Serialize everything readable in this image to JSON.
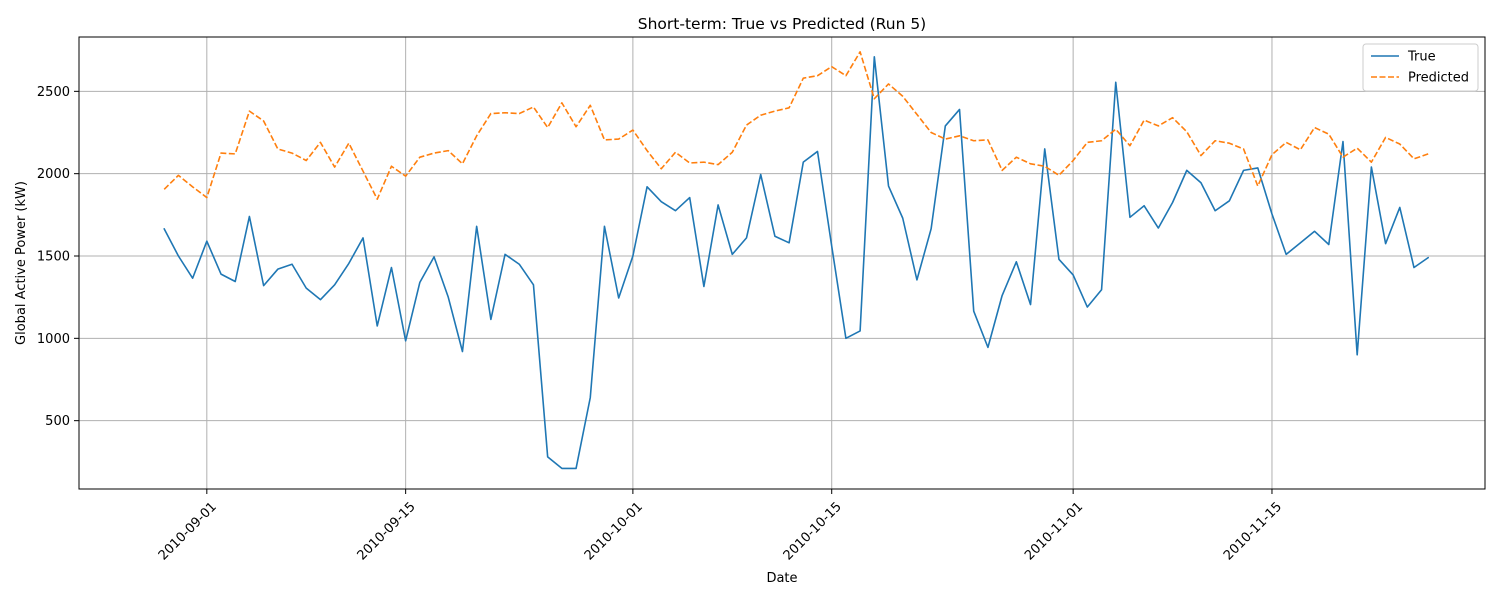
{
  "chart_data": {
    "type": "line",
    "title": "Short-term: True vs Predicted (Run 5)",
    "xlabel": "Date",
    "ylabel": "Global Active Power (kW)",
    "xlim": [
      "2010-08-23",
      "2010-11-30"
    ],
    "ylim": [
      85,
      2830
    ],
    "x_ticks": [
      "2010-09-01",
      "2010-09-15",
      "2010-10-01",
      "2010-10-15",
      "2010-11-01",
      "2010-11-15"
    ],
    "y_ticks": [
      500,
      1000,
      1500,
      2000,
      2500
    ],
    "grid": true,
    "legend_position": "top-right",
    "x_start": "2010-08-29",
    "series": [
      {
        "name": "True",
        "color": "#1f77b4",
        "style": "solid",
        "values": [
          1665,
          1500,
          1365,
          1590,
          1390,
          1345,
          1740,
          1320,
          1420,
          1450,
          1305,
          1235,
          1325,
          1455,
          1610,
          1075,
          1430,
          985,
          1340,
          1495,
          1250,
          920,
          1680,
          1115,
          1510,
          1450,
          1325,
          280,
          210,
          210,
          640,
          1680,
          1245,
          1500,
          1920,
          1830,
          1775,
          1855,
          1315,
          1810,
          1510,
          1610,
          1995,
          1620,
          1580,
          2070,
          2135,
          1560,
          1000,
          1045,
          2710,
          1925,
          1730,
          1355,
          1665,
          2290,
          2390,
          1165,
          945,
          1260,
          1465,
          1205,
          2150,
          1480,
          1385,
          1190,
          1295,
          2555,
          1735,
          1805,
          1670,
          1825,
          2020,
          1945,
          1775,
          1835,
          2020,
          2035,
          1755,
          1510,
          1580,
          1650,
          1570,
          2195,
          900,
          2040,
          1575,
          1795,
          1430,
          1490
        ]
      },
      {
        "name": "Predicted",
        "color": "#ff7f0e",
        "style": "dashed",
        "values": [
          1905,
          1990,
          1920,
          1855,
          2125,
          2120,
          2380,
          2320,
          2150,
          2125,
          2080,
          2190,
          2040,
          2185,
          2015,
          1845,
          2045,
          1985,
          2100,
          2125,
          2140,
          2060,
          2230,
          2365,
          2370,
          2365,
          2405,
          2280,
          2430,
          2285,
          2415,
          2205,
          2210,
          2265,
          2140,
          2030,
          2130,
          2065,
          2070,
          2055,
          2130,
          2295,
          2355,
          2380,
          2400,
          2580,
          2595,
          2650,
          2595,
          2740,
          2455,
          2545,
          2470,
          2360,
          2250,
          2210,
          2230,
          2200,
          2205,
          2020,
          2100,
          2060,
          2045,
          1990,
          2080,
          2190,
          2200,
          2270,
          2170,
          2325,
          2290,
          2340,
          2255,
          2110,
          2200,
          2185,
          2150,
          1925,
          2115,
          2190,
          2145,
          2280,
          2240,
          2100,
          2155,
          2070,
          2220,
          2180,
          2090,
          2120
        ]
      }
    ]
  }
}
